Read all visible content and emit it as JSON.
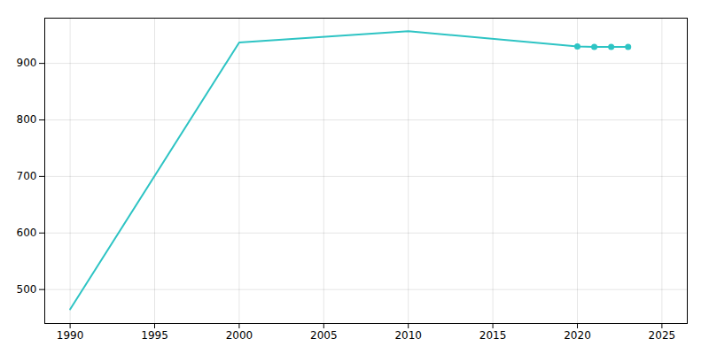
{
  "chart_data": {
    "type": "line",
    "x": [
      1990,
      2000,
      2010,
      2020,
      2021,
      2022,
      2023
    ],
    "series": [
      {
        "type": "line",
        "color": "#2EC4C4",
        "values": [
          465,
          937,
          957,
          930,
          929,
          929,
          929
        ]
      },
      {
        "type": "scatter",
        "color": "#2EC4C4",
        "marker": "circle",
        "values": [
          null,
          null,
          null,
          930,
          929,
          929,
          929
        ]
      }
    ],
    "xlim": [
      1988.5,
      2026.5
    ],
    "xticks": [
      1990,
      1995,
      2000,
      2005,
      2010,
      2015,
      2020,
      2025
    ],
    "ylim": [
      440,
      980
    ],
    "yticks": [
      500,
      600,
      700,
      800,
      900
    ],
    "grid": true
  }
}
